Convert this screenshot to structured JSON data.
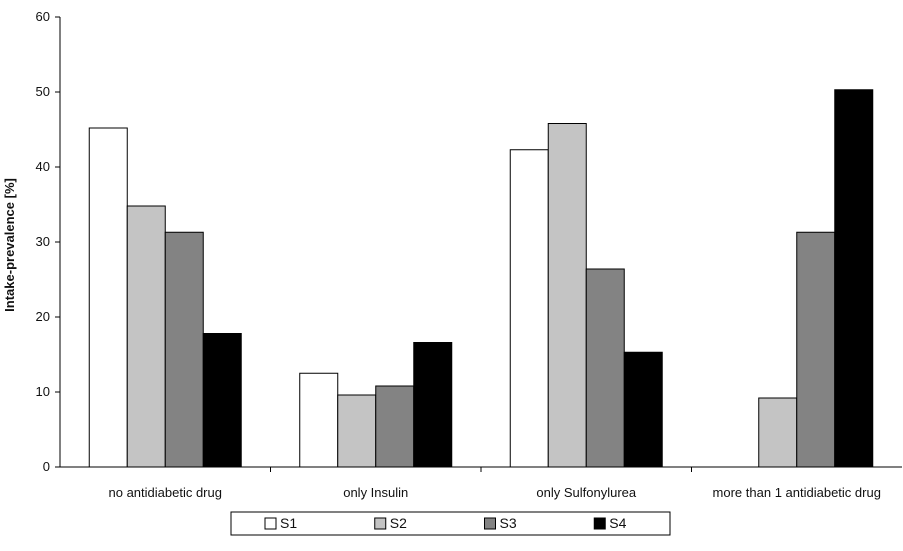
{
  "chart_data": {
    "type": "bar",
    "title": "",
    "xlabel": "",
    "ylabel": "Intake-prevalence [%]",
    "ylim": [
      0,
      60
    ],
    "yticks": [
      0,
      10,
      20,
      30,
      40,
      50,
      60
    ],
    "grid": false,
    "legend_position": "bottom",
    "categories": [
      "no antidiabetic drug",
      "only Insulin",
      "only Sulfonylurea",
      "more than 1 antidiabetic drug"
    ],
    "series": [
      {
        "name": "S1",
        "color": "#ffffff",
        "values": [
          45.2,
          12.5,
          42.3,
          0
        ]
      },
      {
        "name": "S2",
        "color": "#c4c4c4",
        "values": [
          34.8,
          9.6,
          45.8,
          9.2
        ]
      },
      {
        "name": "S3",
        "color": "#838383",
        "values": [
          31.3,
          10.8,
          26.4,
          31.3
        ]
      },
      {
        "name": "S4",
        "color": "#000000",
        "values": [
          17.8,
          16.6,
          15.3,
          50.3
        ]
      }
    ]
  }
}
